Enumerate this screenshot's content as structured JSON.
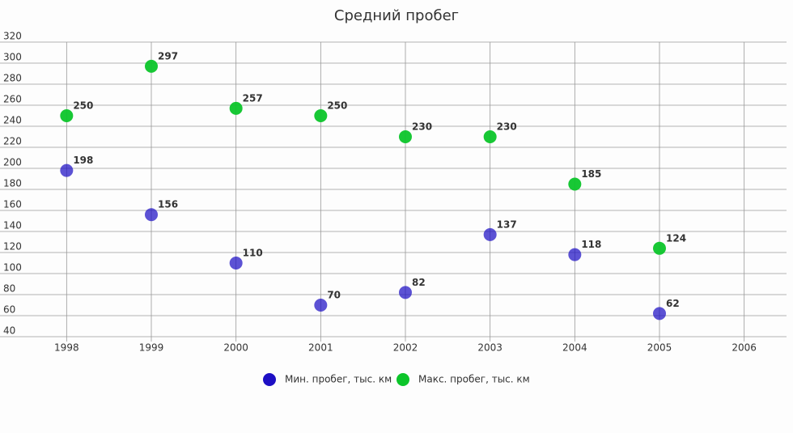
{
  "chart_data": {
    "type": "scatter",
    "title": "Средний пробег",
    "x": [
      1998,
      1999,
      2000,
      2001,
      2002,
      2003,
      2004,
      2005
    ],
    "series": [
      {
        "name": "Мин. пробег, тыс. км",
        "color": "#1d0fc4",
        "values": [
          198,
          156,
          110,
          70,
          82,
          137,
          118,
          62
        ]
      },
      {
        "name": "Макс. пробег, тыс. км",
        "color": "#0cc52a",
        "values": [
          250,
          297,
          257,
          250,
          230,
          230,
          185,
          124
        ]
      }
    ],
    "xlim": [
      1997.5,
      2006.5
    ],
    "xticks": [
      1998,
      1999,
      2000,
      2001,
      2002,
      2003,
      2004,
      2005,
      2006
    ],
    "ylim": [
      40,
      320
    ],
    "yticks": [
      40,
      60,
      80,
      100,
      120,
      140,
      160,
      180,
      200,
      220,
      240,
      260,
      280,
      300,
      320
    ],
    "grid": true,
    "legend": "bottom"
  }
}
